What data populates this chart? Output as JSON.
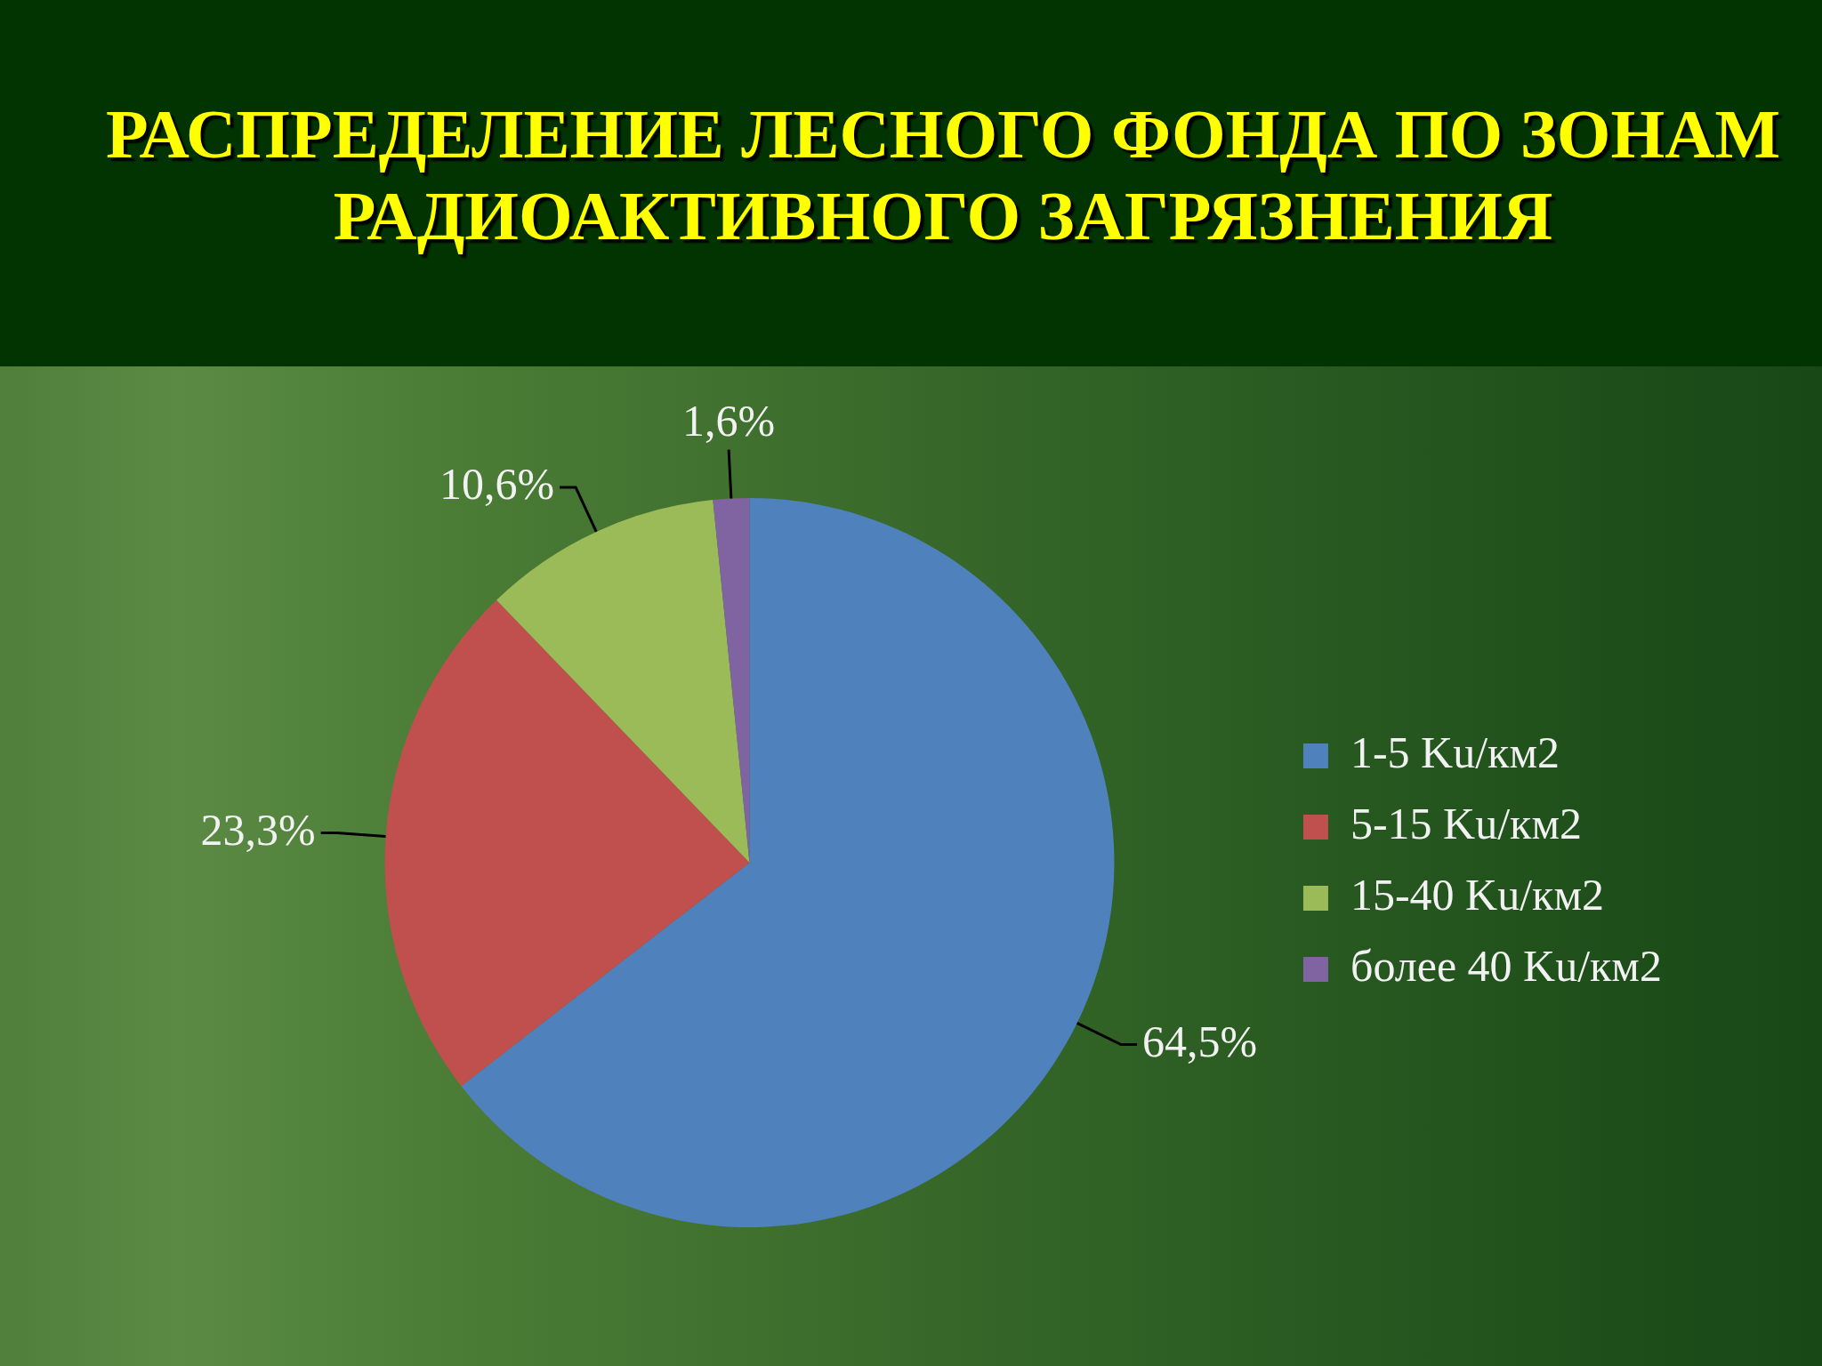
{
  "chart_data": {
    "type": "pie",
    "title": "РАСПРЕДЕЛЕНИЕ ЛЕСНОГО ФОНДА ПО ЗОНАМ РАДИОАКТИВНОГО ЗАГРЯЗНЕНИЯ",
    "categories": [
      "1-5 Ku/км2",
      "5-15 Ku/км2",
      "15-40 Ku/км2",
      "более 40 Ku/км2"
    ],
    "values": [
      64.5,
      23.3,
      10.6,
      1.6
    ],
    "colors": [
      "#4f81bd",
      "#c0504d",
      "#9bbb59",
      "#8064a2"
    ],
    "value_labels": [
      "64,5%",
      "23,3%",
      "10,6%",
      "1,6%"
    ],
    "legend": "right"
  }
}
